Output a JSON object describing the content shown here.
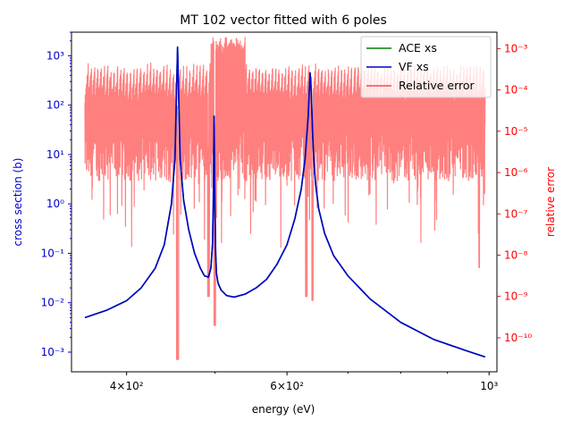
{
  "chart_data": {
    "type": "line",
    "title": "MT 102 vector fitted with 6 poles",
    "xlabel": "energy (eV)",
    "ylabel_left": "cross section (b)",
    "ylabel_right": "relative error",
    "xscale": "log",
    "yscale_left": "log",
    "yscale_right": "log",
    "xlim": [
      348,
      1020
    ],
    "ylim_left": [
      0.0004,
      3000
    ],
    "ylim_right": [
      1.5e-11,
      0.0025
    ],
    "x_ticks": [
      {
        "value": 400,
        "label": "4×10²"
      },
      {
        "value": 600,
        "label": "6×10²"
      },
      {
        "value": 1000,
        "label": "10³"
      }
    ],
    "y_ticks_left": [
      {
        "value": 0.001,
        "label": "10⁻³"
      },
      {
        "value": 0.01,
        "label": "10⁻²"
      },
      {
        "value": 0.1,
        "label": "10⁻¹"
      },
      {
        "value": 1,
        "label": "10⁰"
      },
      {
        "value": 10,
        "label": "10¹"
      },
      {
        "value": 100,
        "label": "10²"
      },
      {
        "value": 1000,
        "label": "10³"
      }
    ],
    "y_ticks_right": [
      {
        "value": 1e-10,
        "label": "10⁻¹⁰"
      },
      {
        "value": 1e-09,
        "label": "10⁻⁹"
      },
      {
        "value": 1e-08,
        "label": "10⁻⁸"
      },
      {
        "value": 1e-07,
        "label": "10⁻⁷"
      },
      {
        "value": 1e-06,
        "label": "10⁻⁶"
      },
      {
        "value": 1e-05,
        "label": "10⁻⁵"
      },
      {
        "value": 0.0001,
        "label": "10⁻⁴"
      },
      {
        "value": 0.001,
        "label": "10⁻³"
      }
    ],
    "legend": {
      "placement": "top-right",
      "entries": [
        {
          "label": "ACE xs",
          "color": "#008000"
        },
        {
          "label": "VF xs",
          "color": "#0000cc"
        },
        {
          "label": "Relative error",
          "color": "#ff0000"
        }
      ]
    },
    "series": [
      {
        "name": "VF xs",
        "axis": "left",
        "color": "#0000cc",
        "x": [
          360,
          380,
          400,
          415,
          430,
          440,
          448,
          452,
          455,
          458,
          462,
          468,
          475,
          482,
          487,
          492,
          495,
          497,
          498,
          499,
          500,
          501,
          502,
          504,
          508,
          515,
          525,
          540,
          555,
          570,
          585,
          600,
          612,
          622,
          628,
          633,
          636,
          638,
          640,
          642,
          645,
          650,
          660,
          675,
          700,
          740,
          800,
          870,
          940,
          990
        ],
        "y": [
          0.005,
          0.007,
          0.011,
          0.02,
          0.05,
          0.15,
          1.0,
          8,
          1500,
          8,
          1.2,
          0.3,
          0.1,
          0.05,
          0.035,
          0.033,
          0.05,
          0.15,
          1,
          60,
          1,
          0.1,
          0.04,
          0.025,
          0.018,
          0.014,
          0.013,
          0.015,
          0.02,
          0.03,
          0.06,
          0.15,
          0.5,
          2,
          8,
          60,
          450,
          180,
          30,
          8,
          2.5,
          0.8,
          0.25,
          0.09,
          0.035,
          0.012,
          0.004,
          0.0018,
          0.0011,
          0.0008
        ]
      },
      {
        "name": "ACE xs",
        "axis": "left",
        "color": "#008000",
        "x": [
          360,
          380,
          400,
          415,
          430,
          440,
          448,
          452,
          455,
          458,
          462,
          468,
          475,
          482,
          487,
          492,
          495,
          497,
          498,
          499,
          500,
          501,
          502,
          504,
          508,
          515,
          525,
          540,
          555,
          570,
          585,
          600,
          612,
          622,
          628,
          633,
          636,
          638,
          640,
          642,
          645,
          650,
          660,
          675,
          700,
          740,
          800,
          870,
          940,
          990
        ],
        "y": [
          0.005,
          0.007,
          0.011,
          0.02,
          0.05,
          0.15,
          1.0,
          8,
          1500,
          8,
          1.2,
          0.3,
          0.1,
          0.05,
          0.035,
          0.033,
          0.05,
          0.15,
          1,
          60,
          1,
          0.1,
          0.04,
          0.025,
          0.018,
          0.014,
          0.013,
          0.015,
          0.02,
          0.03,
          0.06,
          0.15,
          0.5,
          2,
          8,
          60,
          450,
          180,
          30,
          8,
          2.5,
          0.8,
          0.25,
          0.09,
          0.035,
          0.012,
          0.004,
          0.0018,
          0.0011,
          0.0008
        ]
      },
      {
        "name": "Relative error",
        "axis": "right",
        "color": "#ff0000",
        "opacity": 0.5,
        "x_range": [
          360,
          990
        ],
        "y_upper_envelope": [
          0.0001,
          0.001
        ],
        "y_typical_band": [
          1e-06,
          0.0001
        ],
        "y_dips": [
          {
            "x": 455,
            "y": 3e-11
          },
          {
            "x": 500,
            "y": 2e-10
          },
          {
            "x": 492,
            "y": 1e-09
          },
          {
            "x": 630,
            "y": 1e-09
          },
          {
            "x": 640,
            "y": 8e-10
          },
          {
            "x": 975,
            "y": 5e-09
          }
        ]
      }
    ]
  }
}
